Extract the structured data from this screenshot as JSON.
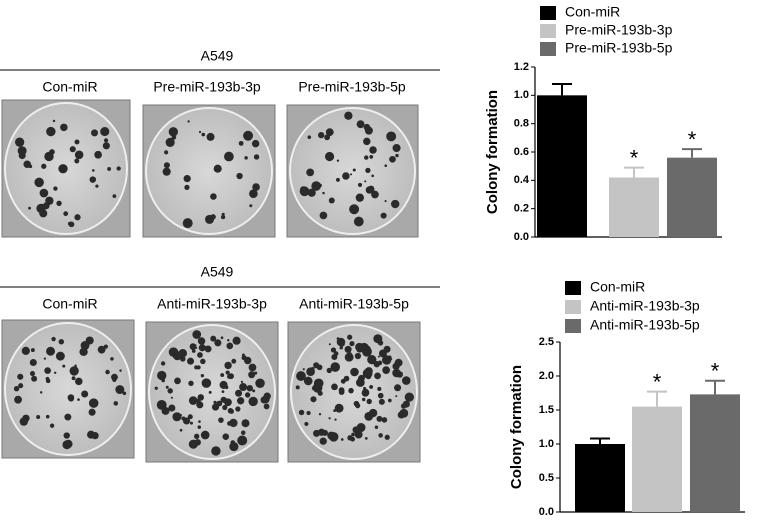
{
  "panels": [
    {
      "title": "A549",
      "labels": [
        "Con-miR",
        "Pre-miR-193b-3p",
        "Pre-miR-193b-5p"
      ]
    },
    {
      "title": "A549",
      "labels": [
        "Con-miR",
        "Anti-miR-193b-3p",
        "Anti-miR-193b-5p"
      ]
    }
  ],
  "chart_data": [
    {
      "type": "bar",
      "ylabel": "Colony formation",
      "series": [
        {
          "name": "Con-miR",
          "color": "#000000",
          "values": [
            1.0
          ],
          "errors": [
            0.08
          ]
        },
        {
          "name": "Pre-miR-193b-3p",
          "color": "#c4c4c4",
          "values": [
            0.42
          ],
          "errors": [
            0.07
          ],
          "marker": "*"
        },
        {
          "name": "Pre-miR-193b-5p",
          "color": "#6a6a6a",
          "values": [
            0.56
          ],
          "errors": [
            0.06
          ],
          "marker": "*"
        }
      ],
      "ylim": [
        0,
        1.2
      ],
      "yticks": [
        {
          "value": 0,
          "label": "0.0"
        },
        0.2,
        0.4,
        0.6,
        0.8,
        {
          "value": 1,
          "label": "1.0"
        },
        1.2
      ]
    },
    {
      "type": "bar",
      "ylabel": "Colony formation",
      "series": [
        {
          "name": "Con-miR",
          "color": "#000000",
          "values": [
            1.0
          ],
          "errors": [
            0.08
          ]
        },
        {
          "name": "Anti-miR-193b-3p",
          "color": "#c4c4c4",
          "values": [
            1.55
          ],
          "errors": [
            0.22
          ],
          "marker": "*"
        },
        {
          "name": "Anti-miR-193b-5p",
          "color": "#6a6a6a",
          "values": [
            1.73
          ],
          "errors": [
            0.2
          ],
          "marker": "*"
        }
      ],
      "ylim": [
        0,
        2.5
      ],
      "yticks": [
        {
          "value": 0,
          "label": "0.0"
        },
        0.5,
        {
          "value": 1,
          "label": "1.0"
        },
        1.5,
        {
          "value": 2,
          "label": "2.0"
        },
        2.5
      ]
    }
  ]
}
